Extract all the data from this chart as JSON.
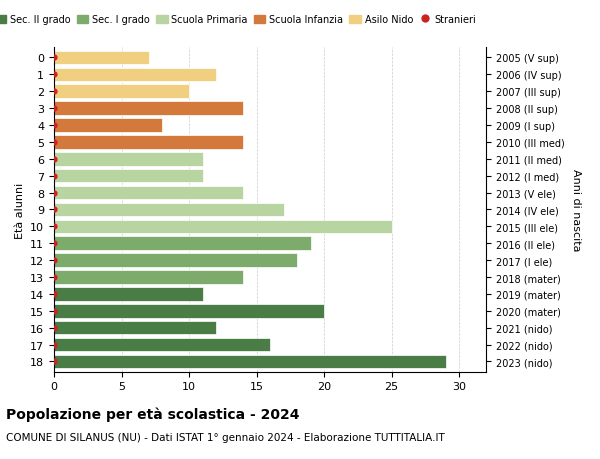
{
  "ages": [
    18,
    17,
    16,
    15,
    14,
    13,
    12,
    11,
    10,
    9,
    8,
    7,
    6,
    5,
    4,
    3,
    2,
    1,
    0
  ],
  "values": [
    29,
    16,
    12,
    20,
    11,
    14,
    18,
    19,
    25,
    17,
    14,
    11,
    11,
    14,
    8,
    14,
    10,
    12,
    7
  ],
  "right_labels": [
    "2005 (V sup)",
    "2006 (IV sup)",
    "2007 (III sup)",
    "2008 (II sup)",
    "2009 (I sup)",
    "2010 (III med)",
    "2011 (II med)",
    "2012 (I med)",
    "2013 (V ele)",
    "2014 (IV ele)",
    "2015 (III ele)",
    "2016 (II ele)",
    "2017 (I ele)",
    "2018 (mater)",
    "2019 (mater)",
    "2020 (mater)",
    "2021 (nido)",
    "2022 (nido)",
    "2023 (nido)"
  ],
  "bar_colors": [
    "#4a7c45",
    "#4a7c45",
    "#4a7c45",
    "#4a7c45",
    "#4a7c45",
    "#7dab6c",
    "#7dab6c",
    "#7dab6c",
    "#b8d4a0",
    "#b8d4a0",
    "#b8d4a0",
    "#b8d4a0",
    "#b8d4a0",
    "#d4793c",
    "#d4793c",
    "#d4793c",
    "#f0d080",
    "#f0d080",
    "#f0d080"
  ],
  "legend_labels": [
    "Sec. II grado",
    "Sec. I grado",
    "Scuola Primaria",
    "Scuola Infanzia",
    "Asilo Nido",
    "Stranieri"
  ],
  "legend_colors": [
    "#4a7c45",
    "#7dab6c",
    "#b8d4a0",
    "#d4793c",
    "#f0d080",
    "#cc2222"
  ],
  "dot_color": "#cc2222",
  "title": "Popolazione per età scolastica - 2024",
  "subtitle": "COMUNE DI SILANUS (NU) - Dati ISTAT 1° gennaio 2024 - Elaborazione TUTTITALIA.IT",
  "ylabel": "Età alunni",
  "right_ylabel": "Anni di nascita",
  "xlim": [
    0,
    32
  ],
  "xticks": [
    0,
    5,
    10,
    15,
    20,
    25,
    30
  ],
  "background_color": "#ffffff",
  "grid_color": "#cccccc"
}
